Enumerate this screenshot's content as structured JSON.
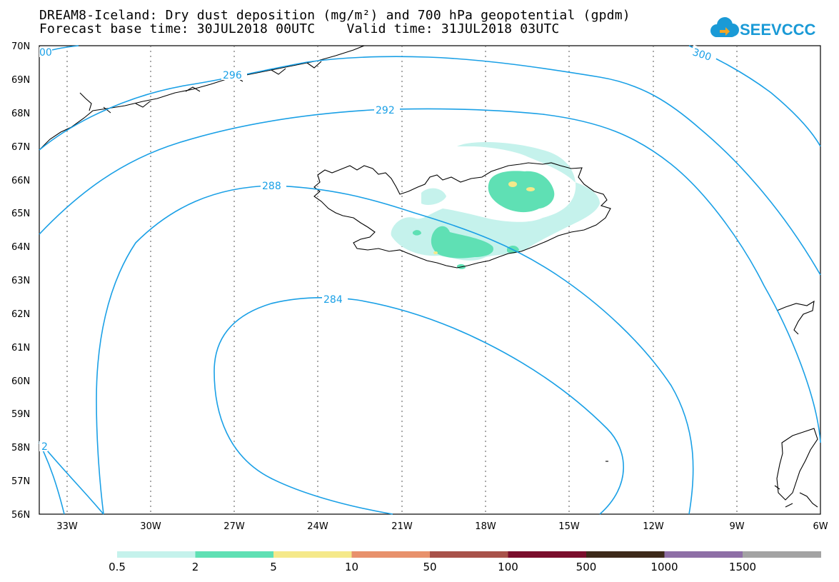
{
  "title": {
    "line1": "DREAM8-Iceland: Dry dust deposition (mg/m²) and 700 hPa geopotential (gpdm)",
    "line2": "Forecast base time: 30JUL2018 00UTC    Valid time: 31JUL2018 03UTC"
  },
  "logo": {
    "text": "SEEVCCC",
    "icon": "cloud-icon",
    "color": "#1a9ad6"
  },
  "map": {
    "lat_labels": [
      "70N",
      "69N",
      "68N",
      "67N",
      "66N",
      "65N",
      "64N",
      "63N",
      "62N",
      "61N",
      "60N",
      "59N",
      "58N",
      "57N",
      "56N"
    ],
    "lon_labels": [
      "33W",
      "30W",
      "27W",
      "24W",
      "21W",
      "18W",
      "15W",
      "12W",
      "9W",
      "6W"
    ],
    "contour_color": "#1aa0e6",
    "contour_labels": [
      "296",
      "292",
      "288",
      "284",
      "300",
      "00",
      "2"
    ]
  },
  "legend": {
    "colors": [
      "#c5f2ec",
      "#5fe0b4",
      "#f5e98a",
      "#e8916c",
      "#a8524a",
      "#7a0e2c",
      "#3d2a1a",
      "#8e6fa6",
      "#a3a3a3"
    ],
    "labels": [
      "0.5",
      "2",
      "5",
      "10",
      "50",
      "100",
      "500",
      "1000",
      "1500"
    ]
  }
}
